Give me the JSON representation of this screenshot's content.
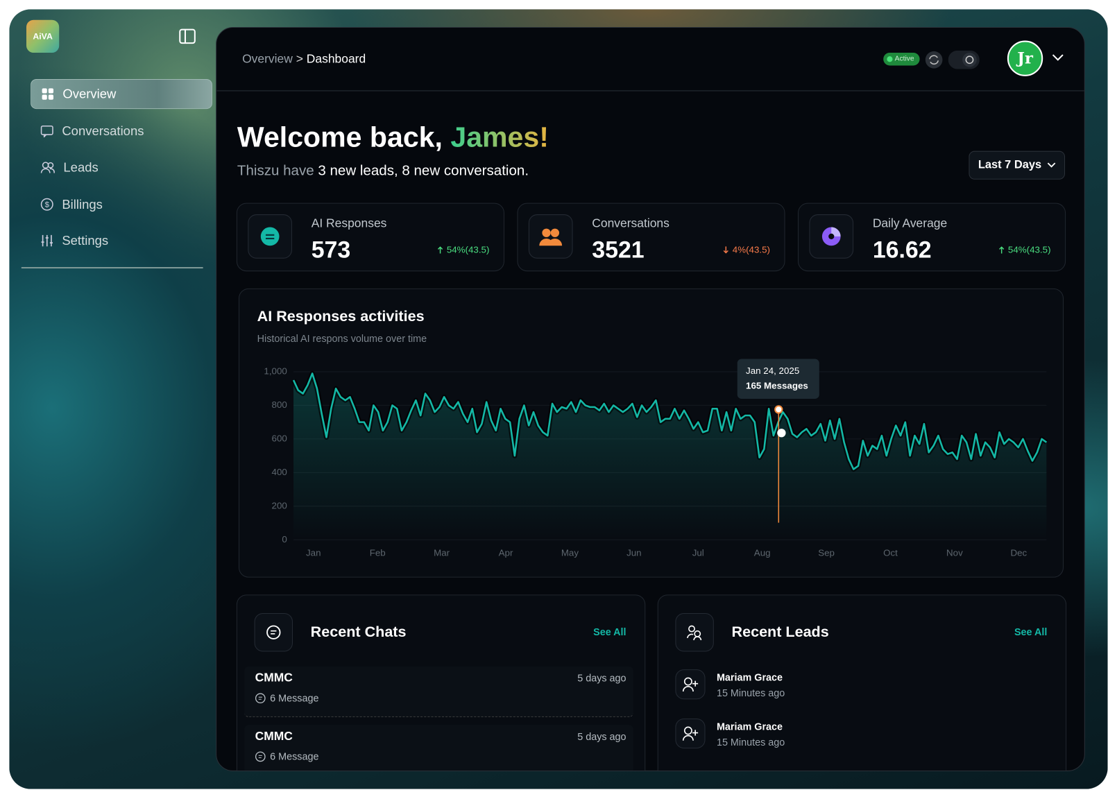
{
  "sidebar": {
    "logo": "AiVA",
    "nav": [
      "Overview",
      "Conversations",
      "Leads",
      "Billings",
      "Settings"
    ]
  },
  "header": {
    "breadcrumb_parent": "Overview",
    "breadcrumb_separator": ">",
    "breadcrumb_current": "Dashboard",
    "status": "Active",
    "avatar": "Jr"
  },
  "welcome": {
    "greeting": "Welcome back,",
    "name": "James!",
    "subtitle_prefix": "Thiszu have",
    "subtitle_highlight": "3 new leads, 8 new conversation."
  },
  "range": "Last 7 Days",
  "stats": [
    {
      "label": "AI Responses",
      "value": 573,
      "change": "54%(43.5)",
      "trend": "up"
    },
    {
      "label": "Conversations",
      "value": 3521,
      "change": "4%(43.5)",
      "trend": "down"
    },
    {
      "label": "Daily Average",
      "value": 16.62,
      "change": "54%(43.5)",
      "trend": "up"
    }
  ],
  "chart_data": {
    "type": "line",
    "title": "AI Responses activities",
    "subtitle": "Historical AI respons volume over time",
    "color": "#14b8a6",
    "grid": true,
    "ylim": [
      0,
      1000
    ],
    "yticks": [
      0,
      200,
      400,
      600,
      800,
      {
        "value": 1000,
        "label": "1,000"
      }
    ],
    "x_labels": [
      "Jan",
      "Feb",
      "Mar",
      "Apr",
      "May",
      "Jun",
      "Jul",
      "Aug",
      "Sep",
      "Oct",
      "Nov",
      "Dec"
    ],
    "annotation": {
      "date": "Jan 24, 2025",
      "label": "165 Messages"
    },
    "values": [
      950,
      890,
      870,
      920,
      990,
      900,
      750,
      610,
      780,
      900,
      850,
      830,
      850,
      780,
      700,
      700,
      650,
      800,
      760,
      650,
      700,
      800,
      780,
      650,
      700,
      770,
      830,
      740,
      870,
      830,
      760,
      790,
      850,
      800,
      780,
      820,
      750,
      700,
      780,
      640,
      690,
      820,
      710,
      650,
      780,
      720,
      700,
      500,
      720,
      800,
      680,
      760,
      680,
      640,
      620,
      810,
      760,
      790,
      780,
      820,
      760,
      830,
      800,
      790,
      790,
      770,
      810,
      760,
      800,
      780,
      760,
      780,
      810,
      730,
      800,
      760,
      790,
      830,
      700,
      720,
      720,
      780,
      720,
      770,
      720,
      660,
      700,
      640,
      650,
      780,
      780,
      650,
      760,
      650,
      780,
      720,
      740,
      740,
      700,
      490,
      540,
      780,
      620,
      700,
      760,
      720,
      630,
      610,
      640,
      660,
      620,
      640,
      690,
      590,
      710,
      600,
      720,
      580,
      480,
      420,
      440,
      590,
      500,
      560,
      540,
      620,
      500,
      600,
      680,
      620,
      700,
      500,
      620,
      570,
      690,
      520,
      560,
      620,
      540,
      510,
      520,
      480,
      620,
      580,
      480,
      630,
      500,
      580,
      550,
      490,
      640,
      570,
      600,
      580,
      550,
      600,
      530,
      470,
      520,
      600,
      580
    ]
  },
  "recent_chats": {
    "title": "Recent Chats",
    "see_all": "See All",
    "items": [
      {
        "name": "CMMC",
        "time": "5 days ago",
        "messages": "6 Message"
      },
      {
        "name": "CMMC",
        "time": "5 days ago",
        "messages": "6 Message"
      }
    ]
  },
  "recent_leads": {
    "title": "Recent Leads",
    "see_all": "See All",
    "items": [
      {
        "name": "Mariam Grace",
        "time": "15 Minutes ago"
      },
      {
        "name": "Mariam Grace",
        "time": "15 Minutes ago"
      }
    ]
  }
}
